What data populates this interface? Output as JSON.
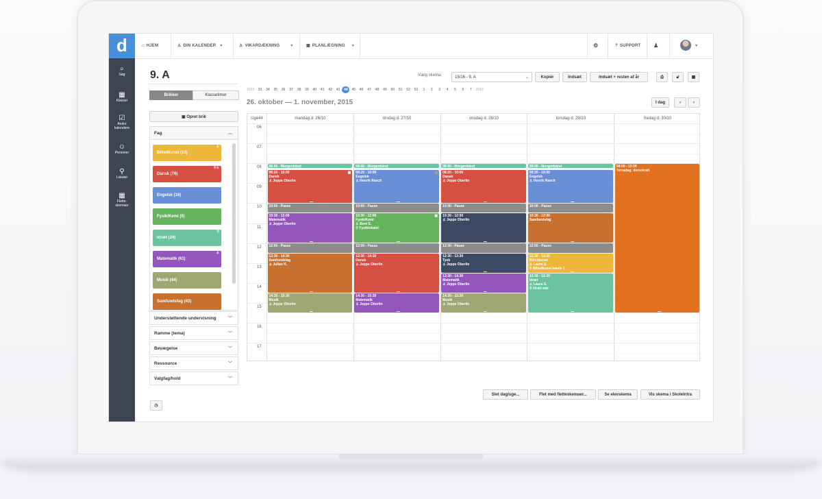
{
  "nav": {
    "logo": "d",
    "items": [
      {
        "icon": "⌕",
        "label": "Søg"
      },
      {
        "icon": "▦",
        "label": "Klasser"
      },
      {
        "icon": "☑",
        "label": "Andre kalendere"
      },
      {
        "icon": "☺",
        "label": "Personer"
      },
      {
        "icon": "⚲",
        "label": "Lokaler"
      },
      {
        "icon": "▦",
        "label": "Flette-skemaer"
      }
    ]
  },
  "topbar": {
    "home": "HJEM",
    "calendar": "DIN KALENDER",
    "substitute": "VIKARDÆKNING",
    "planning": "PLANLÆGNING",
    "support": "SUPPORT"
  },
  "left": {
    "title": "9. A",
    "tab_bricks": "Brikker",
    "tab_hours": "Klassetimer",
    "create": "Opret brik",
    "fag_header": "Fag",
    "subjects": [
      {
        "label": "Billedkunst (13)",
        "color": "#eeb63a"
      },
      {
        "label": "Dansk (76)",
        "color": "#d64f43"
      },
      {
        "label": "Engelsk (16)",
        "color": "#6a8fd6"
      },
      {
        "label": "Fysik/Kemi (6)",
        "color": "#66b35f"
      },
      {
        "label": "Idræt (24)",
        "color": "#6cc3a0"
      },
      {
        "label": "Matematik (61)",
        "color": "#9356bd"
      },
      {
        "label": "Musik (44)",
        "color": "#a0a673"
      },
      {
        "label": "Samfundsfag (43)",
        "color": "#c8702f"
      }
    ],
    "sections": [
      "Understøttende undervisning",
      "Ramme (tema)",
      "Bevægelse",
      "Ressource",
      "Valgfag/hold"
    ]
  },
  "header": {
    "select_label": "Vælg skema:",
    "select_value": "15/16 - 9. A",
    "copy": "Kopiér",
    "insert": "Indsæt",
    "insert_rest": "Indsæt + resten af år",
    "today": "I dag",
    "range": "26. oktober — 1. november, 2015",
    "weeks": [
      "2015",
      "33",
      "34",
      "35",
      "36",
      "37",
      "38",
      "39",
      "40",
      "41",
      "42",
      "43",
      "44",
      "45",
      "46",
      "47",
      "48",
      "49",
      "50",
      "51",
      "52",
      "53",
      "1",
      "2",
      "3",
      "4",
      "5",
      "6",
      "7",
      "2016"
    ],
    "current_week": "44"
  },
  "calendar": {
    "week_label": "Uge44",
    "days": [
      "mandag d. 26/10",
      "tirsdag d. 27/10",
      "onsdag d. 28/10",
      "torsdag d. 29/10",
      "fredag d. 30/10"
    ],
    "hours": [
      "06",
      "07",
      "08",
      "09",
      "10",
      "11",
      "12",
      "13",
      "14",
      "15",
      "16",
      "17"
    ],
    "events": [
      {
        "day": 0,
        "start": 8.0,
        "end": 8.25,
        "color": "#6cc3a0",
        "lines": [
          "08:00 - Morgenbånd"
        ]
      },
      {
        "day": 0,
        "start": 8.33,
        "end": 10.0,
        "color": "#d64f43",
        "lines": [
          "08:20 - 10:00",
          "Dansk",
          "♙ Jeppe Oberlin"
        ],
        "glyph": "▣"
      },
      {
        "day": 0,
        "start": 10.0,
        "end": 10.5,
        "color": "#8c8c8c",
        "lines": [
          "10:00 - Pause"
        ]
      },
      {
        "day": 0,
        "start": 10.5,
        "end": 12.0,
        "color": "#9356bd",
        "lines": [
          "10:30 - 12:00",
          "Matematik",
          "♙ Jeppe Oberlin"
        ]
      },
      {
        "day": 0,
        "start": 12.0,
        "end": 12.5,
        "color": "#8c8c8c",
        "lines": [
          "12:00 - Pause"
        ]
      },
      {
        "day": 0,
        "start": 12.5,
        "end": 14.5,
        "color": "#c8702f",
        "lines": [
          "12:30 - 14:30",
          "Samfundsfag",
          "♙ Julian K."
        ]
      },
      {
        "day": 0,
        "start": 14.5,
        "end": 15.5,
        "color": "#a0a673",
        "lines": [
          "14:30 - 15:30",
          "Musik",
          "♙ Jeppe Oberlin"
        ]
      },
      {
        "day": 1,
        "start": 8.0,
        "end": 8.25,
        "color": "#6cc3a0",
        "lines": [
          "08:00 - Morgenbånd"
        ]
      },
      {
        "day": 1,
        "start": 8.33,
        "end": 10.0,
        "color": "#6a8fd6",
        "lines": [
          "08:20 - 10:00",
          "Engelsk",
          "♙ Henrik Rasch"
        ],
        "glyph": "⚠"
      },
      {
        "day": 1,
        "start": 10.0,
        "end": 10.5,
        "color": "#8c8c8c",
        "lines": [
          "10:00 - Pause"
        ]
      },
      {
        "day": 1,
        "start": 10.5,
        "end": 12.0,
        "color": "#66b35f",
        "lines": [
          "10:30 - 12:00",
          "Fysik/Kemi",
          "♙ Bent E.",
          "⚲ Fysiklokalet"
        ],
        "glyph": "▣"
      },
      {
        "day": 1,
        "start": 12.0,
        "end": 12.5,
        "color": "#8c8c8c",
        "lines": [
          "12:00 - Pause"
        ]
      },
      {
        "day": 1,
        "start": 12.5,
        "end": 14.5,
        "color": "#d64f43",
        "lines": [
          "12:30 - 14:30",
          "Dansk",
          "♙ Jeppe Oberlin"
        ]
      },
      {
        "day": 1,
        "start": 14.5,
        "end": 15.5,
        "color": "#9356bd",
        "lines": [
          "14:30 - 15:30",
          "Matematik",
          "♙ Jeppe Oberlin"
        ]
      },
      {
        "day": 2,
        "start": 8.0,
        "end": 8.25,
        "color": "#6cc3a0",
        "lines": [
          "08:00 - Morgenbånd"
        ]
      },
      {
        "day": 2,
        "start": 8.33,
        "end": 10.0,
        "color": "#d64f43",
        "lines": [
          "08:20 - 10:00",
          "Dansk",
          "♙ Jeppe Oberlin"
        ]
      },
      {
        "day": 2,
        "start": 10.0,
        "end": 10.5,
        "color": "#8c8c8c",
        "lines": [
          "10:00 - Pause"
        ]
      },
      {
        "day": 2,
        "start": 10.5,
        "end": 12.0,
        "color": "#3e4a63",
        "lines": [
          "10:30 - 12:00",
          "♙ Jeppe Oberlin"
        ]
      },
      {
        "day": 2,
        "start": 12.0,
        "end": 12.5,
        "color": "#8c8c8c",
        "lines": [
          "12:00 - Pause"
        ]
      },
      {
        "day": 2,
        "start": 12.5,
        "end": 13.5,
        "color": "#3e4a63",
        "lines": [
          "12:30 - 13:30",
          "Tysk",
          "♙ Jeppe Oberlin"
        ]
      },
      {
        "day": 2,
        "start": 13.5,
        "end": 14.5,
        "color": "#9356bd",
        "lines": [
          "13:30 - 14:30",
          "Matematik",
          "♙ Jeppe Oberlin"
        ]
      },
      {
        "day": 2,
        "start": 14.5,
        "end": 15.5,
        "color": "#a0a673",
        "lines": [
          "14:30 - 15:30",
          "Musik",
          "♙ Jeppe Oberlin"
        ]
      },
      {
        "day": 3,
        "start": 8.0,
        "end": 8.25,
        "color": "#6cc3a0",
        "lines": [
          "08:00 - Morgenbånd"
        ]
      },
      {
        "day": 3,
        "start": 8.33,
        "end": 10.0,
        "color": "#6a8fd6",
        "lines": [
          "08:20 - 10:00",
          "Engelsk",
          "♙ Henrik Rasch"
        ]
      },
      {
        "day": 3,
        "start": 10.0,
        "end": 10.5,
        "color": "#8c8c8c",
        "lines": [
          "10:00 - Pause"
        ]
      },
      {
        "day": 3,
        "start": 10.5,
        "end": 12.0,
        "color": "#c8702f",
        "lines": [
          "10:30 - 12:00",
          "Samfundsfag"
        ]
      },
      {
        "day": 3,
        "start": 12.0,
        "end": 12.5,
        "color": "#8c8c8c",
        "lines": [
          "12:00 - Pause"
        ]
      },
      {
        "day": 3,
        "start": 12.5,
        "end": 13.5,
        "color": "#eeb63a",
        "lines": [
          "12:30 - 13:30",
          "Billedkunst",
          "♙ Laura S.",
          "⚲ Billedkunst lokale 1"
        ]
      },
      {
        "day": 3,
        "start": 13.5,
        "end": 15.5,
        "color": "#6cc3a0",
        "lines": [
          "13:30 - 15:30",
          "Idræt",
          "♙ Laura S.",
          "⚲ Idræt ude"
        ]
      },
      {
        "day": 4,
        "start": 8.0,
        "end": 15.5,
        "color": "#e2721f",
        "lines": [
          "08:00 - 15:30",
          "Temadag: demokrati"
        ]
      }
    ]
  },
  "footer": {
    "delete": "Slet dag/uge...",
    "merge": "Flet med fletteskemaer...",
    "student": "Se elevskema",
    "show": "Vis skema i SkoleIntra"
  }
}
